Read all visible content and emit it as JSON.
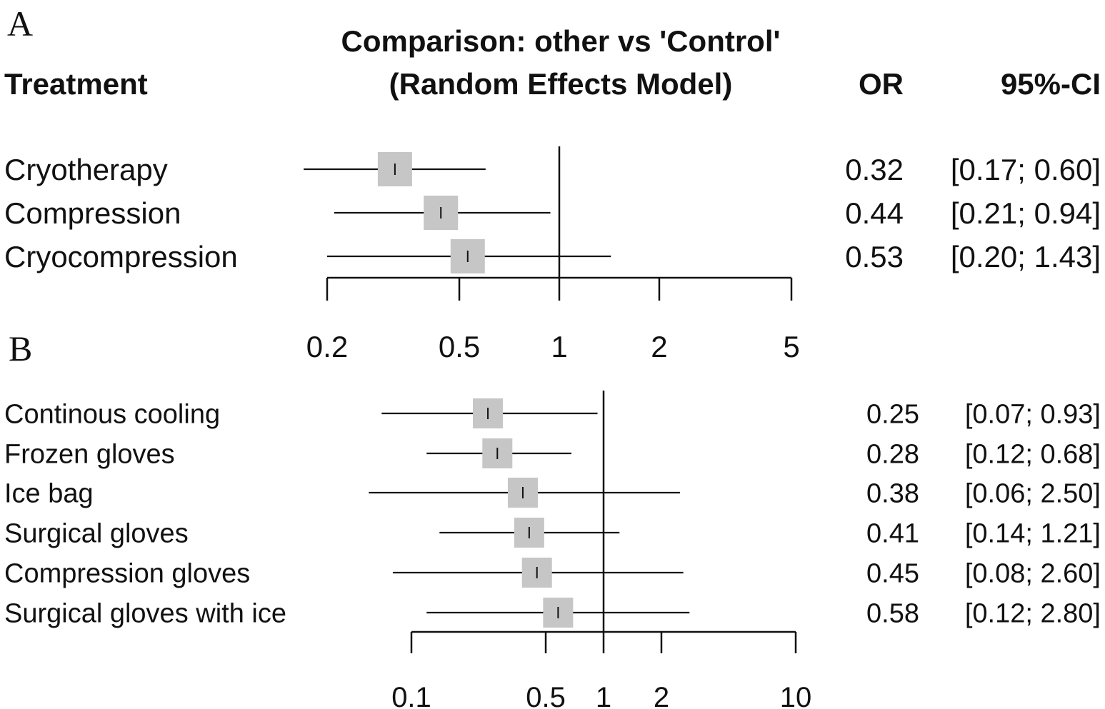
{
  "chart_data": [
    {
      "panel": "A",
      "type": "forest",
      "title_line1": "Comparison: other vs 'Control'",
      "title_line2": "(Random Effects Model)",
      "col_treatment": "Treatment",
      "col_or": "OR",
      "col_ci": "95%-CI",
      "scale": "log",
      "xlim": [
        0.2,
        5
      ],
      "reference": 1,
      "ticks": [
        0.2,
        0.5,
        1,
        2,
        5
      ],
      "tick_labels": [
        "0.2",
        "0.5",
        "1",
        "2",
        "5"
      ],
      "rows": [
        {
          "label": "Cryotherapy",
          "or": 0.32,
          "lo": 0.17,
          "hi": 0.6,
          "or_text": "0.32",
          "ci_text": "[0.17; 0.60]"
        },
        {
          "label": "Compression",
          "or": 0.44,
          "lo": 0.21,
          "hi": 0.94,
          "or_text": "0.44",
          "ci_text": "[0.21; 0.94]"
        },
        {
          "label": "Cryocompression",
          "or": 0.53,
          "lo": 0.2,
          "hi": 1.43,
          "or_text": "0.53",
          "ci_text": "[0.20; 1.43]"
        }
      ]
    },
    {
      "panel": "B",
      "type": "forest",
      "scale": "log",
      "xlim": [
        0.1,
        10
      ],
      "reference": 1,
      "ticks": [
        0.1,
        0.5,
        1,
        2,
        10
      ],
      "tick_labels": [
        "0.1",
        "0.5",
        "1",
        "2",
        "10"
      ],
      "rows": [
        {
          "label": "Continous cooling",
          "or": 0.25,
          "lo": 0.07,
          "hi": 0.93,
          "or_text": "0.25",
          "ci_text": "[0.07; 0.93]"
        },
        {
          "label": "Frozen gloves",
          "or": 0.28,
          "lo": 0.12,
          "hi": 0.68,
          "or_text": "0.28",
          "ci_text": "[0.12; 0.68]"
        },
        {
          "label": "Ice bag",
          "or": 0.38,
          "lo": 0.06,
          "hi": 2.5,
          "or_text": "0.38",
          "ci_text": "[0.06; 2.50]"
        },
        {
          "label": "Surgical gloves",
          "or": 0.41,
          "lo": 0.14,
          "hi": 1.21,
          "or_text": "0.41",
          "ci_text": "[0.14; 1.21]"
        },
        {
          "label": "Compression gloves",
          "or": 0.45,
          "lo": 0.08,
          "hi": 2.6,
          "or_text": "0.45",
          "ci_text": "[0.08; 2.60]"
        },
        {
          "label": "Surgical gloves with ice",
          "or": 0.58,
          "lo": 0.12,
          "hi": 2.8,
          "or_text": "0.58",
          "ci_text": "[0.12; 2.80]"
        }
      ]
    }
  ],
  "colors": {
    "box": "#c6c6c6",
    "line": "#111111",
    "text": "#111111"
  }
}
